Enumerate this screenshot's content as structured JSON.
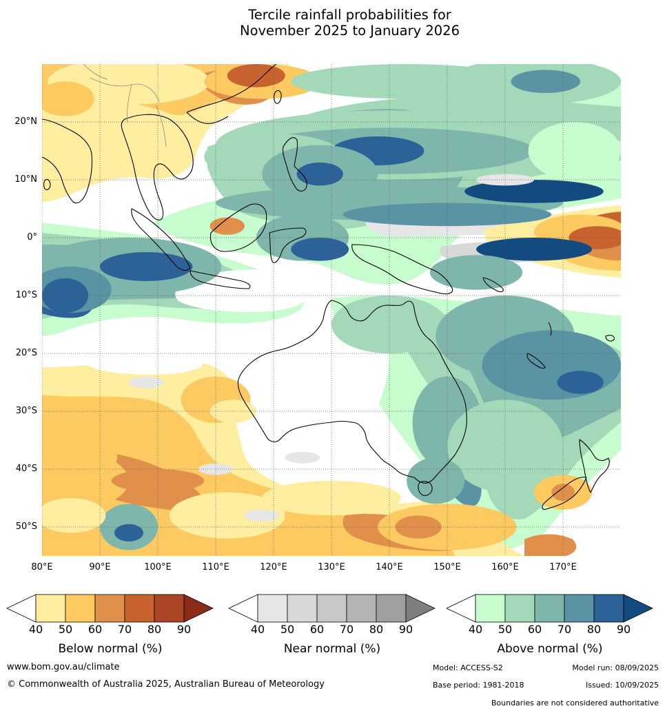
{
  "title": {
    "line1": "Tercile rainfall probabilities for",
    "line2": "November 2025 to January 2026"
  },
  "axes": {
    "lat_labels": [
      "20°N",
      "10°N",
      "0°",
      "10°S",
      "20°S",
      "30°S",
      "40°S",
      "50°S"
    ],
    "lat_values": [
      20,
      10,
      0,
      -10,
      -20,
      -30,
      -40,
      -50
    ],
    "lon_labels": [
      "80°E",
      "90°E",
      "100°E",
      "110°E",
      "120°E",
      "130°E",
      "140°E",
      "150°E",
      "160°E",
      "170°E"
    ],
    "lon_values": [
      80,
      90,
      100,
      110,
      120,
      130,
      140,
      150,
      160,
      170
    ],
    "lon_range": [
      80,
      180
    ],
    "lat_range": [
      -55,
      30
    ]
  },
  "legend": {
    "ticks": [
      "40",
      "50",
      "60",
      "70",
      "80",
      "90"
    ],
    "below": {
      "caption": "Below normal (%)",
      "colors": [
        "#ffeda0",
        "#fdca61",
        "#e0904a",
        "#c8622f",
        "#ab4526",
        "#8c2b17"
      ]
    },
    "near": {
      "caption": "Near normal (%)",
      "colors": [
        "#e6e6e6",
        "#d8d8d8",
        "#c8c8c8",
        "#b4b4b4",
        "#9f9f9f",
        "#7f7f7f"
      ]
    },
    "above": {
      "caption": "Above normal (%)",
      "colors": [
        "#c7fccf",
        "#a3d8b9",
        "#7fb6ab",
        "#5a93a4",
        "#2c6297",
        "#134a80"
      ]
    }
  },
  "footer": {
    "website": "www.bom.gov.au/climate",
    "copyright": "© Commonwealth of Australia 2025, Australian Bureau of Meteorology",
    "model": "Model: ACCESS-S2",
    "model_run": "Model run: 08/09/2025",
    "base_period": "Base period: 1981-2018",
    "issued": "Issued: 10/09/2025",
    "disclaimer": "Boundaries are not considered authoritative"
  },
  "map_blobs": [
    {
      "lon": 95,
      "lat": 27,
      "rx": 14,
      "ry": 4,
      "c": 1
    },
    {
      "lon": 118,
      "lat": 27,
      "rx": 10,
      "ry": 3,
      "c": 2
    },
    {
      "lon": 117,
      "lat": 28,
      "rx": 5,
      "ry": 2,
      "c": 4
    },
    {
      "lon": 84,
      "lat": 24,
      "rx": 5,
      "ry": 3,
      "c": 2
    },
    {
      "lon": 143,
      "lat": 27,
      "rx": 20,
      "ry": 3,
      "c": 7
    },
    {
      "lon": 165,
      "lat": 27,
      "rx": 15,
      "ry": 4,
      "c": 7
    },
    {
      "lon": 167,
      "lat": 27,
      "rx": 6,
      "ry": 2,
      "c": 9
    },
    {
      "lon": 140,
      "lat": 16,
      "rx": 30,
      "ry": 6,
      "c": 7
    },
    {
      "lon": 140,
      "lat": 15,
      "rx": 25,
      "ry": 4,
      "c": 8
    },
    {
      "lon": 138,
      "lat": 15,
      "rx": 8,
      "ry": 2.5,
      "c": 10
    },
    {
      "lon": 120,
      "lat": 14,
      "rx": 12,
      "ry": 4,
      "c": 7
    },
    {
      "lon": 128,
      "lat": 11,
      "rx": 10,
      "ry": 5,
      "c": 8
    },
    {
      "lon": 128,
      "lat": 11,
      "rx": 4,
      "ry": 2,
      "c": 10
    },
    {
      "lon": 140,
      "lat": 6,
      "rx": 30,
      "ry": 3,
      "c": 8
    },
    {
      "lon": 150,
      "lat": 4,
      "rx": 18,
      "ry": 2,
      "c": 9
    },
    {
      "lon": 172,
      "lat": 15,
      "rx": 8,
      "ry": 5,
      "c": 6
    },
    {
      "lon": 165,
      "lat": 8,
      "rx": 12,
      "ry": 2,
      "c": 11
    },
    {
      "lon": 173,
      "lat": 1,
      "rx": 8,
      "ry": 3,
      "c": 2
    },
    {
      "lon": 176,
      "lat": 0,
      "rx": 5,
      "ry": 2,
      "c": 4
    },
    {
      "lon": 165,
      "lat": -2,
      "rx": 10,
      "ry": 2,
      "c": 11
    },
    {
      "lon": 95,
      "lat": -5,
      "rx": 16,
      "ry": 5,
      "c": 8
    },
    {
      "lon": 98,
      "lat": -5,
      "rx": 8,
      "ry": 2.5,
      "c": 10
    },
    {
      "lon": 85,
      "lat": -9,
      "rx": 7,
      "ry": 4,
      "c": 9
    },
    {
      "lon": 84,
      "lat": -10,
      "rx": 4,
      "ry": 3,
      "c": 10
    },
    {
      "lon": 125,
      "lat": 0,
      "rx": 8,
      "ry": 4,
      "c": 8
    },
    {
      "lon": 128,
      "lat": -2,
      "rx": 5,
      "ry": 2,
      "c": 10
    },
    {
      "lon": 112,
      "lat": 2,
      "rx": 3,
      "ry": 1.5,
      "c": 3
    },
    {
      "lon": 155,
      "lat": -6,
      "rx": 8,
      "ry": 3,
      "c": 8
    },
    {
      "lon": 140,
      "lat": -15,
      "rx": 10,
      "ry": 5,
      "c": 7
    },
    {
      "lon": 160,
      "lat": -17,
      "rx": 12,
      "ry": 7,
      "c": 8
    },
    {
      "lon": 168,
      "lat": -22,
      "rx": 12,
      "ry": 6,
      "c": 9
    },
    {
      "lon": 173,
      "lat": -25,
      "rx": 4,
      "ry": 2,
      "c": 10
    },
    {
      "lon": 150,
      "lat": -32,
      "rx": 6,
      "ry": 8,
      "c": 8
    },
    {
      "lon": 160,
      "lat": -36,
      "rx": 10,
      "ry": 8,
      "c": 7
    },
    {
      "lon": 148,
      "lat": -42,
      "rx": 5,
      "ry": 4,
      "c": 8
    },
    {
      "lon": 170,
      "lat": -44,
      "rx": 5,
      "ry": 3,
      "c": 2
    },
    {
      "lon": 170,
      "lat": -44,
      "rx": 2,
      "ry": 1.5,
      "c": 3
    },
    {
      "lon": 95,
      "lat": -50,
      "rx": 5,
      "ry": 4,
      "c": 8
    },
    {
      "lon": 95,
      "lat": -51,
      "rx": 2.5,
      "ry": 1.5,
      "c": 10
    },
    {
      "lon": 85,
      "lat": -42,
      "rx": 10,
      "ry": 5,
      "c": 2
    },
    {
      "lon": 100,
      "lat": -42,
      "rx": 8,
      "ry": 2,
      "c": 3
    },
    {
      "lon": 88,
      "lat": -38,
      "rx": 5,
      "ry": 3,
      "c": 2
    },
    {
      "lon": 85,
      "lat": -48,
      "rx": 6,
      "ry": 3,
      "c": 1
    },
    {
      "lon": 112,
      "lat": -48,
      "rx": 10,
      "ry": 4,
      "c": 1
    },
    {
      "lon": 150,
      "lat": -50,
      "rx": 12,
      "ry": 4,
      "c": 2
    },
    {
      "lon": 145,
      "lat": -50,
      "rx": 4,
      "ry": 2,
      "c": 3
    },
    {
      "lon": 130,
      "lat": -45,
      "rx": 12,
      "ry": 3,
      "c": 1
    },
    {
      "lon": 110,
      "lat": -28,
      "rx": 6,
      "ry": 4,
      "c": 2
    },
    {
      "lon": 113,
      "lat": -30,
      "rx": 4,
      "ry": 2,
      "c": 1
    },
    {
      "lon": 118,
      "lat": -48,
      "rx": 3,
      "ry": 1,
      "c": 5
    },
    {
      "lon": 110,
      "lat": -40,
      "rx": 3,
      "ry": 1,
      "c": 5
    },
    {
      "lon": 125,
      "lat": -38,
      "rx": 3,
      "ry": 1,
      "c": 5
    },
    {
      "lon": 98,
      "lat": -25,
      "rx": 3,
      "ry": 1,
      "c": 5
    },
    {
      "lon": 160,
      "lat": 10,
      "rx": 5,
      "ry": 1,
      "c": 5
    }
  ]
}
